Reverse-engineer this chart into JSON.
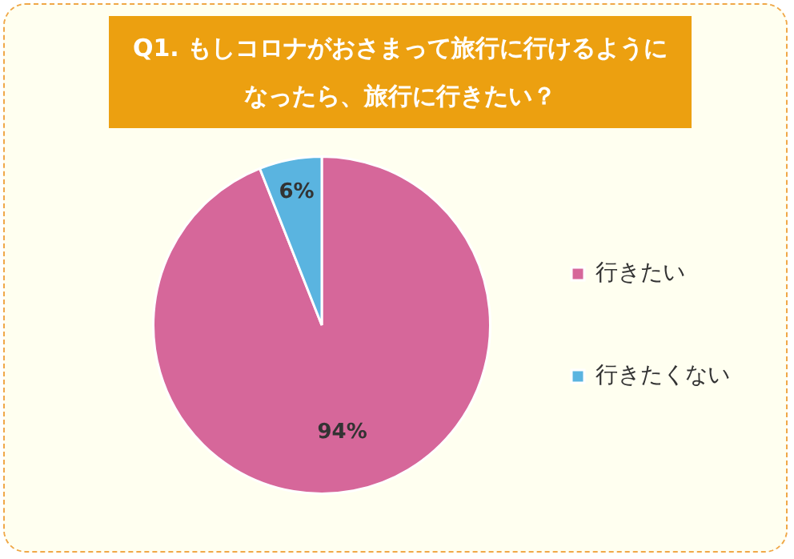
{
  "chart_data": {
    "type": "pie",
    "title": "Q1. もしコロナがおさまって旅行に行けるようになったら、旅行に行きたい？",
    "categories": [
      "行きたい",
      "行きたくない"
    ],
    "values": [
      94,
      6
    ],
    "colors": [
      "#d6679a",
      "#5ab4e0"
    ],
    "value_labels": [
      "94%",
      "6%"
    ],
    "legend": "right"
  }
}
